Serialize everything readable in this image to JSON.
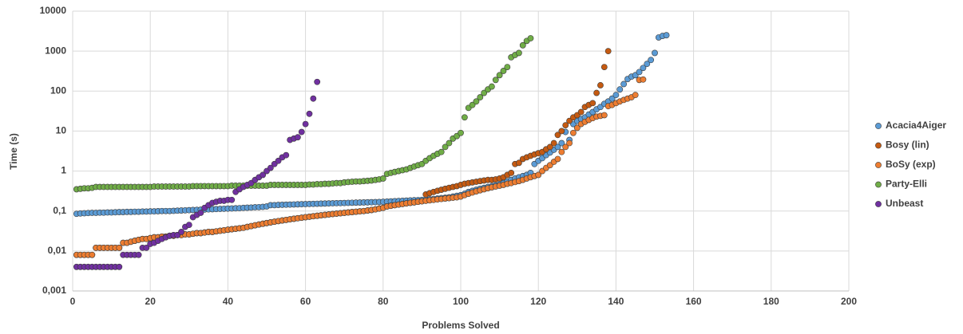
{
  "chart_data": {
    "type": "scatter",
    "x_label": "Problems Solved",
    "y_label": "Time (s)",
    "log_y": true,
    "grid": true,
    "legend": "right",
    "xlim": [
      0,
      200
    ],
    "xticks": [
      0,
      20,
      40,
      60,
      80,
      100,
      120,
      140,
      160,
      180,
      200
    ],
    "ylim": [
      0.001,
      10000
    ],
    "yticks": [
      {
        "value": 0.001,
        "label": "0,001"
      },
      {
        "value": 0.01,
        "label": "0,01"
      },
      {
        "value": 0.1,
        "label": "0,1"
      },
      1,
      10,
      100,
      1000,
      10000
    ],
    "x": [
      1,
      2,
      3,
      4,
      5,
      6,
      7,
      8,
      9,
      10,
      11,
      12,
      13,
      14,
      15,
      16,
      17,
      18,
      19,
      20,
      21,
      22,
      23,
      24,
      25,
      26,
      27,
      28,
      29,
      30,
      31,
      32,
      33,
      34,
      35,
      36,
      37,
      38,
      39,
      40,
      41,
      42,
      43,
      44,
      45,
      46,
      47,
      48,
      49,
      50,
      51,
      52,
      53,
      54,
      55,
      56,
      57,
      58,
      59,
      60,
      61,
      62,
      63,
      64,
      65,
      66,
      67,
      68,
      69,
      70,
      71,
      72,
      73,
      74,
      75,
      76,
      77,
      78,
      79,
      80,
      81,
      82,
      83,
      84,
      85,
      86,
      87,
      88,
      89,
      90,
      91,
      92,
      93,
      94,
      95,
      96,
      97,
      98,
      99,
      100,
      101,
      102,
      103,
      104,
      105,
      106,
      107,
      108,
      109,
      110,
      111,
      112,
      113,
      114,
      115,
      116,
      117,
      118,
      119,
      120,
      121,
      122,
      123,
      124,
      125,
      126,
      127,
      128,
      129,
      130,
      131,
      132,
      133,
      134,
      135,
      136,
      137,
      138,
      139,
      140,
      141,
      142,
      143,
      144,
      145,
      146,
      147,
      148,
      149,
      150,
      151,
      152,
      153
    ],
    "series": [
      {
        "name": "Acacia4Aiger",
        "color": "#5b9bd5",
        "values": [
          0.085,
          0.087,
          0.088,
          0.089,
          0.09,
          0.09,
          0.091,
          0.091,
          0.092,
          0.092,
          0.093,
          0.094,
          0.094,
          0.095,
          0.095,
          0.096,
          0.096,
          0.097,
          0.097,
          0.098,
          0.098,
          0.099,
          0.1,
          0.1,
          0.1,
          0.101,
          0.102,
          0.103,
          0.104,
          0.105,
          0.106,
          0.107,
          0.108,
          0.109,
          0.11,
          0.111,
          0.112,
          0.113,
          0.114,
          0.115,
          0.116,
          0.117,
          0.118,
          0.12,
          0.121,
          0.122,
          0.124,
          0.125,
          0.127,
          0.13,
          0.14,
          0.14,
          0.142,
          0.143,
          0.144,
          0.145,
          0.146,
          0.147,
          0.148,
          0.149,
          0.15,
          0.151,
          0.152,
          0.153,
          0.154,
          0.155,
          0.156,
          0.157,
          0.158,
          0.159,
          0.16,
          0.161,
          0.162,
          0.163,
          0.164,
          0.165,
          0.166,
          0.167,
          0.168,
          0.17,
          0.172,
          0.174,
          0.176,
          0.178,
          0.18,
          0.182,
          0.184,
          0.186,
          0.188,
          0.19,
          0.193,
          0.196,
          0.2,
          0.205,
          0.21,
          0.215,
          0.22,
          0.23,
          0.24,
          0.25,
          0.27,
          0.3,
          0.32,
          0.34,
          0.36,
          0.38,
          0.4,
          0.42,
          0.44,
          0.46,
          0.5,
          0.55,
          0.6,
          0.65,
          0.7,
          0.75,
          0.8,
          0.9,
          1.5,
          1.8,
          2.1,
          2.5,
          2.9,
          3.4,
          4,
          5,
          9.5,
          6,
          15,
          18,
          20,
          22,
          26,
          30,
          35,
          40,
          48,
          55,
          65,
          80,
          110,
          150,
          200,
          230,
          250,
          300,
          380,
          480,
          600,
          900,
          2200,
          2400,
          2500
        ]
      },
      {
        "name": "Bosy (lin)",
        "color": "#c55a11",
        "values": [
          0.008,
          0.008,
          0.008,
          0.008,
          0.008,
          0.012,
          0.012,
          0.012,
          0.012,
          0.012,
          0.012,
          0.012,
          0.016,
          0.016,
          0.017,
          0.018,
          0.019,
          0.02,
          0.02,
          0.021,
          0.022,
          0.022,
          0.023,
          0.023,
          0.024,
          0.024,
          0.025,
          0.025,
          0.026,
          0.026,
          0.027,
          0.028,
          0.028,
          0.029,
          0.03,
          0.03,
          0.031,
          0.032,
          0.033,
          0.034,
          0.035,
          0.036,
          0.037,
          0.038,
          0.04,
          0.042,
          0.044,
          0.046,
          0.048,
          0.05,
          0.052,
          0.054,
          0.056,
          0.058,
          0.06,
          0.062,
          0.064,
          0.066,
          0.068,
          0.07,
          0.072,
          0.074,
          0.076,
          0.078,
          0.08,
          0.082,
          0.084,
          0.086,
          0.088,
          0.09,
          0.092,
          0.094,
          0.096,
          0.098,
          0.1,
          0.103,
          0.106,
          0.11,
          0.115,
          0.12,
          0.13,
          0.135,
          0.14,
          0.145,
          0.15,
          0.155,
          0.16,
          0.165,
          0.17,
          0.175,
          0.26,
          0.28,
          0.3,
          0.32,
          0.34,
          0.36,
          0.38,
          0.4,
          0.42,
          0.45,
          0.48,
          0.5,
          0.52,
          0.54,
          0.56,
          0.58,
          0.6,
          0.6,
          0.62,
          0.65,
          0.7,
          0.8,
          0.9,
          1.5,
          1.6,
          2.0,
          2.2,
          2.4,
          2.6,
          2.8,
          3.0,
          3.5,
          4.0,
          5,
          8,
          10,
          14,
          18,
          22,
          25,
          30,
          40,
          45,
          50,
          90,
          140,
          400,
          1000,
          null,
          null,
          null,
          null,
          null,
          null,
          null,
          null,
          null,
          null,
          null,
          null,
          null,
          null,
          null
        ]
      },
      {
        "name": "BoSy (exp)",
        "color": "#ed7d31",
        "values": [
          0.008,
          0.008,
          0.008,
          0.008,
          0.008,
          0.012,
          0.012,
          0.012,
          0.012,
          0.012,
          0.012,
          0.012,
          0.016,
          0.016,
          0.017,
          0.018,
          0.019,
          0.02,
          0.02,
          0.021,
          0.022,
          0.022,
          0.023,
          0.023,
          0.024,
          0.024,
          0.025,
          0.025,
          0.026,
          0.026,
          0.027,
          0.028,
          0.028,
          0.029,
          0.03,
          0.03,
          0.031,
          0.032,
          0.033,
          0.034,
          0.035,
          0.036,
          0.037,
          0.038,
          0.04,
          0.042,
          0.044,
          0.046,
          0.048,
          0.05,
          0.052,
          0.054,
          0.056,
          0.058,
          0.06,
          0.062,
          0.064,
          0.066,
          0.068,
          0.07,
          0.072,
          0.074,
          0.076,
          0.078,
          0.08,
          0.082,
          0.084,
          0.086,
          0.088,
          0.09,
          0.092,
          0.094,
          0.096,
          0.098,
          0.1,
          0.103,
          0.106,
          0.11,
          0.115,
          0.12,
          0.13,
          0.135,
          0.14,
          0.145,
          0.15,
          0.155,
          0.16,
          0.165,
          0.17,
          0.175,
          0.18,
          0.185,
          0.19,
          0.195,
          0.2,
          0.205,
          0.21,
          0.215,
          0.22,
          0.23,
          0.25,
          0.27,
          0.29,
          0.31,
          0.33,
          0.35,
          0.37,
          0.39,
          0.41,
          0.43,
          0.45,
          0.48,
          0.5,
          0.53,
          0.56,
          0.6,
          0.65,
          0.7,
          0.75,
          0.8,
          1.0,
          1.2,
          1.4,
          1.7,
          2.0,
          3,
          4,
          5,
          9,
          12,
          15,
          17,
          19,
          21,
          23,
          24,
          25,
          42,
          45,
          50,
          55,
          60,
          65,
          70,
          80,
          190,
          195,
          null,
          null,
          null,
          null,
          null,
          null
        ]
      },
      {
        "name": "Party-Elli",
        "color": "#70ad47",
        "values": [
          0.35,
          0.36,
          0.37,
          0.37,
          0.38,
          0.4,
          0.4,
          0.4,
          0.4,
          0.4,
          0.4,
          0.4,
          0.4,
          0.4,
          0.4,
          0.4,
          0.4,
          0.4,
          0.4,
          0.4,
          0.41,
          0.41,
          0.41,
          0.41,
          0.41,
          0.41,
          0.41,
          0.41,
          0.41,
          0.41,
          0.42,
          0.42,
          0.42,
          0.42,
          0.42,
          0.42,
          0.42,
          0.42,
          0.42,
          0.42,
          0.43,
          0.43,
          0.43,
          0.43,
          0.43,
          0.43,
          0.43,
          0.43,
          0.43,
          0.43,
          0.45,
          0.45,
          0.45,
          0.45,
          0.45,
          0.45,
          0.45,
          0.45,
          0.45,
          0.45,
          0.46,
          0.46,
          0.47,
          0.47,
          0.48,
          0.48,
          0.49,
          0.5,
          0.5,
          0.52,
          0.53,
          0.54,
          0.55,
          0.55,
          0.56,
          0.57,
          0.58,
          0.6,
          0.62,
          0.65,
          0.85,
          0.9,
          0.95,
          1.0,
          1.05,
          1.1,
          1.2,
          1.3,
          1.4,
          1.5,
          1.8,
          2.1,
          2.4,
          2.7,
          3.0,
          4,
          5,
          6.5,
          7.5,
          9,
          22,
          38,
          45,
          55,
          70,
          90,
          110,
          130,
          190,
          250,
          320,
          400,
          700,
          800,
          900,
          1400,
          1800,
          2100,
          null,
          null,
          null,
          null,
          null,
          null,
          null,
          null,
          null,
          null,
          null,
          null,
          null,
          null,
          null,
          null,
          null,
          null,
          null,
          null,
          null,
          null,
          null,
          null,
          null,
          null,
          null,
          null,
          null,
          null,
          null,
          null,
          null,
          null,
          null
        ]
      },
      {
        "name": "Unbeast",
        "color": "#7030a0",
        "values": [
          0.004,
          0.004,
          0.004,
          0.004,
          0.004,
          0.004,
          0.004,
          0.004,
          0.004,
          0.004,
          0.004,
          0.004,
          0.008,
          0.008,
          0.008,
          0.008,
          0.008,
          0.012,
          0.012,
          0.015,
          0.016,
          0.018,
          0.02,
          0.022,
          0.024,
          0.025,
          0.025,
          0.03,
          0.04,
          0.045,
          0.07,
          0.08,
          0.09,
          0.12,
          0.14,
          0.16,
          0.17,
          0.18,
          0.18,
          0.19,
          0.19,
          0.3,
          0.35,
          0.4,
          0.45,
          0.5,
          0.6,
          0.7,
          0.8,
          1.0,
          1.2,
          1.5,
          1.8,
          2.2,
          2.5,
          6,
          6.5,
          7,
          9.5,
          15,
          27,
          65,
          170,
          null,
          null,
          null,
          null,
          null,
          null,
          null,
          null,
          null,
          null,
          null,
          null,
          null,
          null,
          null,
          null,
          null,
          null,
          null,
          null,
          null,
          null,
          null,
          null,
          null,
          null,
          null,
          null,
          null,
          null,
          null,
          null,
          null,
          null,
          null,
          null,
          null,
          null,
          null,
          null,
          null,
          null,
          null,
          null,
          null,
          null,
          null,
          null,
          null,
          null,
          null,
          null,
          null,
          null,
          null,
          null,
          null,
          null,
          null,
          null,
          null,
          null,
          null,
          null,
          null,
          null,
          null,
          null,
          null,
          null,
          null,
          null,
          null,
          null,
          null,
          null,
          null,
          null,
          null,
          null,
          null,
          null,
          null,
          null,
          null,
          null,
          null
        ]
      }
    ]
  }
}
